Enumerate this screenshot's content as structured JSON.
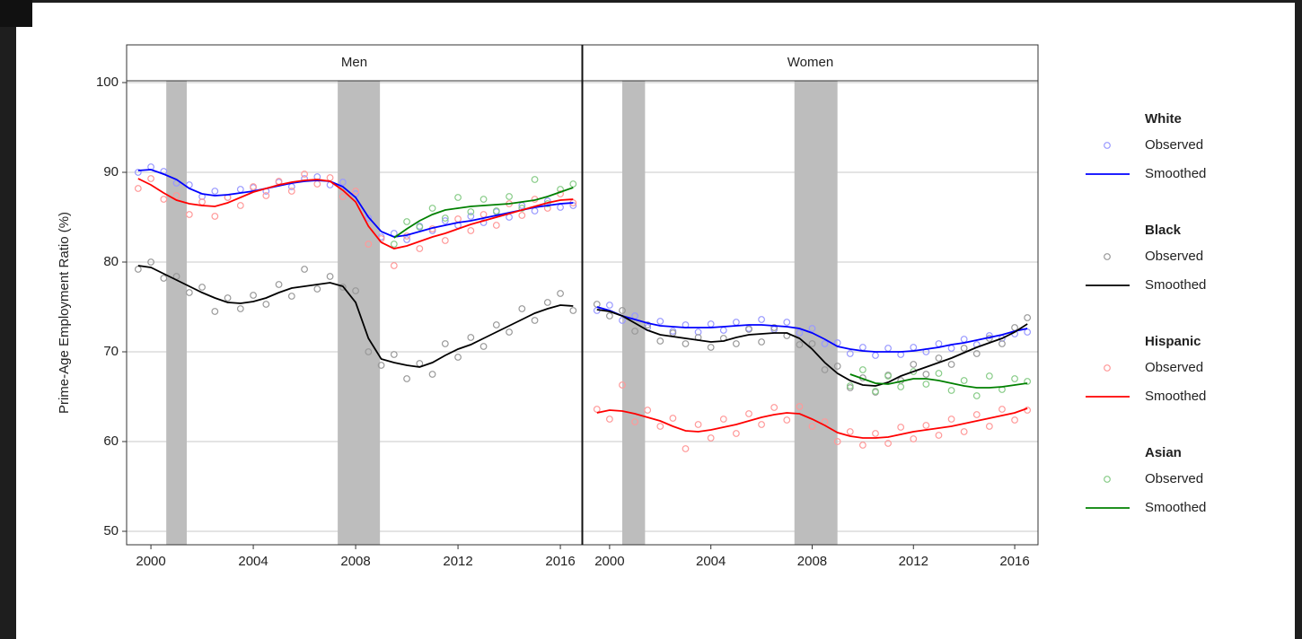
{
  "chart_data": [
    {
      "type": "line",
      "title": "Men",
      "ylabel": "Prime-Age Employment Ratio (%)",
      "x": [
        1999.5,
        2000,
        2000.5,
        2001,
        2001.5,
        2002,
        2002.5,
        2003,
        2003.5,
        2004,
        2004.5,
        2005,
        2005.5,
        2006,
        2006.5,
        2007,
        2007.5,
        2008,
        2008.5,
        2009,
        2009.5,
        2010,
        2010.5,
        2011,
        2011.5,
        2012,
        2012.5,
        2013,
        2013.5,
        2014,
        2014.5,
        2015,
        2015.5,
        2016,
        2016.5
      ],
      "xlim": [
        1999.05,
        2016.84
      ],
      "xticks": [
        2000,
        2004,
        2008,
        2012,
        2016
      ],
      "ylim": [
        48.5,
        100.2
      ],
      "yticks": [
        50,
        60,
        70,
        80,
        90,
        100
      ],
      "grid": true,
      "shaded": [
        [
          2000.6,
          2001.4
        ],
        [
          2007.3,
          2008.95
        ]
      ],
      "series": [
        {
          "name": "White",
          "color": "#0000ff",
          "observed_color": "#9999ff",
          "values": [
            90.0,
            90.6,
            90.1,
            88.8,
            88.6,
            87.3,
            87.9,
            87.2,
            88.1,
            88.3,
            87.9,
            88.9,
            88.4,
            89.3,
            89.5,
            88.6,
            88.9,
            87.6,
            84.9,
            82.8,
            83.2,
            82.5,
            84.0,
            83.5,
            84.6,
            84.1,
            85.1,
            84.4,
            85.6,
            85.0,
            86.3,
            85.7,
            86.8,
            86.1,
            86.3
          ],
          "smoothed": [
            90.2,
            90.3,
            89.8,
            89.2,
            88.2,
            87.6,
            87.4,
            87.5,
            87.7,
            87.9,
            88.2,
            88.5,
            88.8,
            89.0,
            89.1,
            89.0,
            88.4,
            87.2,
            85.0,
            83.4,
            82.8,
            83.0,
            83.4,
            83.8,
            84.1,
            84.4,
            84.6,
            84.9,
            85.2,
            85.5,
            85.8,
            86.1,
            86.3,
            86.5,
            86.6
          ]
        },
        {
          "name": "Black",
          "color": "#000000",
          "observed_color": "#999999",
          "values": [
            79.2,
            80.0,
            78.2,
            78.4,
            76.6,
            77.2,
            74.5,
            76.0,
            74.8,
            76.3,
            75.3,
            77.5,
            76.2,
            79.2,
            77.0,
            78.4,
            77.2,
            76.8,
            70.0,
            68.5,
            69.7,
            67.0,
            68.7,
            67.5,
            70.9,
            69.4,
            71.6,
            70.6,
            73.0,
            72.2,
            74.8,
            73.5,
            75.5,
            76.5,
            74.6
          ],
          "smoothed": [
            79.6,
            79.4,
            78.7,
            78.0,
            77.3,
            76.6,
            76.0,
            75.5,
            75.4,
            75.6,
            76.0,
            76.6,
            77.1,
            77.3,
            77.5,
            77.7,
            77.3,
            75.5,
            71.5,
            69.2,
            68.8,
            68.5,
            68.3,
            68.8,
            69.6,
            70.3,
            70.8,
            71.5,
            72.2,
            72.9,
            73.6,
            74.3,
            74.8,
            75.2,
            75.1
          ]
        },
        {
          "name": "Hispanic",
          "color": "#ff0000",
          "observed_color": "#ff9999",
          "values": [
            88.2,
            89.3,
            87.0,
            87.4,
            85.3,
            86.7,
            85.1,
            87.2,
            86.3,
            88.4,
            87.4,
            89.0,
            87.9,
            89.8,
            88.7,
            89.4,
            87.3,
            87.9,
            82.0,
            82.6,
            79.6,
            82.9,
            81.5,
            83.7,
            82.4,
            84.8,
            83.5,
            85.3,
            84.1,
            86.5,
            85.2,
            87.0,
            86.0,
            87.6,
            86.6
          ],
          "smoothed": [
            89.3,
            88.6,
            87.7,
            86.9,
            86.5,
            86.3,
            86.2,
            86.6,
            87.2,
            87.8,
            88.2,
            88.6,
            88.9,
            89.1,
            89.2,
            89.0,
            88.0,
            86.7,
            84.0,
            82.2,
            81.5,
            81.8,
            82.3,
            82.8,
            83.2,
            83.7,
            84.2,
            84.6,
            85.0,
            85.4,
            85.8,
            86.2,
            86.6,
            86.9,
            87.0
          ]
        },
        {
          "name": "Asian",
          "color": "#008000",
          "observed_color": "#88cc88",
          "values": [
            null,
            null,
            null,
            null,
            null,
            null,
            null,
            null,
            null,
            null,
            null,
            null,
            null,
            null,
            null,
            null,
            null,
            null,
            null,
            null,
            82.0,
            84.5,
            83.9,
            86.0,
            84.9,
            87.2,
            85.6,
            87.0,
            85.7,
            87.3,
            86.0,
            89.2,
            86.5,
            88.1,
            88.7
          ],
          "smoothed": [
            null,
            null,
            null,
            null,
            null,
            null,
            null,
            null,
            null,
            null,
            null,
            null,
            null,
            null,
            null,
            null,
            null,
            null,
            null,
            null,
            82.7,
            83.7,
            84.6,
            85.3,
            85.8,
            86.0,
            86.2,
            86.3,
            86.4,
            86.5,
            86.7,
            86.9,
            87.3,
            87.8,
            88.3
          ]
        }
      ]
    },
    {
      "type": "line",
      "title": "Women",
      "x": [
        1999.5,
        2000,
        2000.5,
        2001,
        2001.5,
        2002,
        2002.5,
        2003,
        2003.5,
        2004,
        2004.5,
        2005,
        2005.5,
        2006,
        2006.5,
        2007,
        2007.5,
        2008,
        2008.5,
        2009,
        2009.5,
        2010,
        2010.5,
        2011,
        2011.5,
        2012,
        2012.5,
        2013,
        2013.5,
        2014,
        2014.5,
        2015,
        2015.5,
        2016,
        2016.5
      ],
      "xlim": [
        1998.94,
        2016.92
      ],
      "xticks": [
        2000,
        2004,
        2008,
        2012,
        2016
      ],
      "ylim": [
        48.5,
        100.2
      ],
      "yticks": [
        50,
        60,
        70,
        80,
        90,
        100
      ],
      "grid": true,
      "shaded": [
        [
          2000.5,
          2001.4
        ],
        [
          2007.3,
          2009.0
        ]
      ],
      "series": [
        {
          "color": "#0000ff",
          "observed_color": "#9999ff",
          "values": [
            74.6,
            75.2,
            73.5,
            74.0,
            72.7,
            73.4,
            72.3,
            73.0,
            72.2,
            73.1,
            72.4,
            73.3,
            72.6,
            73.6,
            72.5,
            73.3,
            72.1,
            72.6,
            70.9,
            71.0,
            69.8,
            70.5,
            69.6,
            70.4,
            69.7,
            70.5,
            70.0,
            70.9,
            70.4,
            71.4,
            70.8,
            71.8,
            71.5,
            72.0,
            72.2
          ],
          "smoothed": [
            75.0,
            74.6,
            74.0,
            73.6,
            73.2,
            72.9,
            72.8,
            72.7,
            72.7,
            72.7,
            72.8,
            72.9,
            73.0,
            73.0,
            72.9,
            72.8,
            72.6,
            72.1,
            71.4,
            70.6,
            70.3,
            70.1,
            70.0,
            70.0,
            70.0,
            70.1,
            70.3,
            70.5,
            70.8,
            71.0,
            71.3,
            71.6,
            71.9,
            72.3,
            72.6
          ]
        },
        {
          "color": "#000000",
          "observed_color": "#999999",
          "values": [
            75.3,
            74.0,
            74.6,
            72.3,
            73.0,
            71.2,
            72.1,
            70.9,
            71.6,
            70.5,
            71.5,
            70.9,
            72.5,
            71.1,
            72.7,
            71.8,
            70.8,
            70.9,
            68.0,
            68.4,
            66.0,
            67.1,
            65.5,
            67.4,
            66.8,
            68.6,
            67.5,
            69.3,
            68.6,
            70.4,
            69.8,
            71.5,
            70.9,
            72.7,
            73.8
          ],
          "smoothed": [
            74.7,
            74.5,
            74.0,
            73.2,
            72.4,
            71.9,
            71.7,
            71.5,
            71.3,
            71.1,
            71.2,
            71.6,
            71.9,
            72.0,
            72.1,
            72.1,
            71.5,
            70.3,
            68.8,
            67.6,
            66.8,
            66.3,
            66.2,
            66.6,
            67.3,
            67.8,
            68.3,
            68.8,
            69.3,
            69.9,
            70.5,
            71.0,
            71.5,
            72.2,
            73.1
          ]
        },
        {
          "color": "#ff0000",
          "observed_color": "#ff9999",
          "values": [
            63.6,
            62.5,
            66.3,
            62.2,
            63.5,
            61.7,
            62.6,
            59.2,
            61.9,
            60.4,
            62.5,
            60.9,
            63.1,
            61.9,
            63.8,
            62.4,
            63.9,
            61.7,
            62.2,
            60.0,
            61.1,
            59.6,
            60.9,
            59.8,
            61.6,
            60.3,
            61.8,
            60.7,
            62.5,
            61.1,
            63.0,
            61.7,
            63.6,
            62.4,
            63.5
          ],
          "smoothed": [
            63.2,
            63.5,
            63.4,
            63.1,
            62.7,
            62.3,
            61.7,
            61.2,
            61.1,
            61.3,
            61.6,
            61.9,
            62.3,
            62.7,
            63.0,
            63.2,
            63.1,
            62.5,
            61.8,
            61.0,
            60.6,
            60.4,
            60.4,
            60.5,
            60.8,
            61.1,
            61.3,
            61.5,
            61.7,
            62.0,
            62.3,
            62.6,
            62.9,
            63.2,
            63.7
          ]
        },
        {
          "color": "#008000",
          "observed_color": "#88cc88",
          "values": [
            null,
            null,
            null,
            null,
            null,
            null,
            null,
            null,
            null,
            null,
            null,
            null,
            null,
            null,
            null,
            null,
            null,
            null,
            null,
            null,
            66.2,
            68.0,
            65.6,
            67.3,
            66.1,
            67.8,
            66.4,
            67.6,
            65.7,
            66.8,
            65.1,
            67.3,
            65.8,
            67.0,
            66.7
          ],
          "smoothed": [
            null,
            null,
            null,
            null,
            null,
            null,
            null,
            null,
            null,
            null,
            null,
            null,
            null,
            null,
            null,
            null,
            null,
            null,
            null,
            null,
            67.5,
            67.0,
            66.5,
            66.4,
            66.7,
            67.0,
            67.0,
            66.8,
            66.5,
            66.2,
            66.0,
            66.0,
            66.1,
            66.3,
            66.5
          ]
        }
      ]
    }
  ],
  "legend": [
    "Observed",
    "Smoothed"
  ]
}
